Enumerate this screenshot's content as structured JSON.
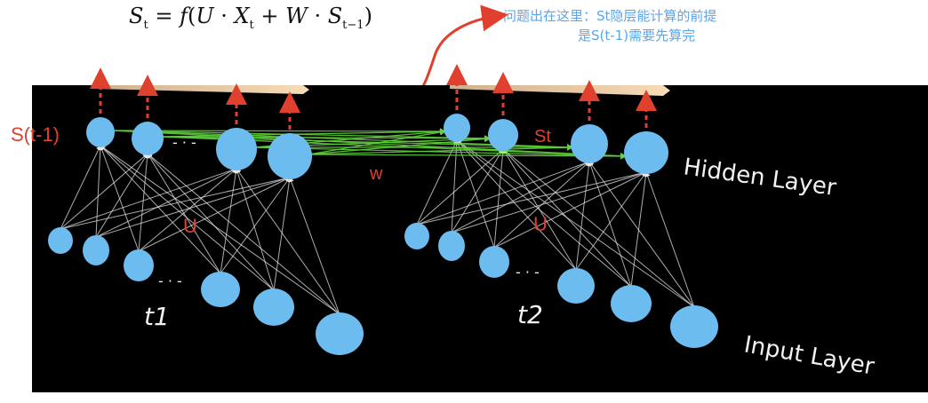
{
  "formula": {
    "lhs_var": "S",
    "lhs_sub": "t",
    "func": "f",
    "u": "U",
    "x": "X",
    "x_sub": "t",
    "w": "W",
    "s": "S",
    "s_sub": "t−1"
  },
  "annotation": {
    "line1": "问题出在这里：St隐层能计算的前提",
    "line2": "是S(t-1)需要先算完"
  },
  "labels": {
    "s_prev": "S(t-1)",
    "st": "St",
    "w": "w",
    "u1": "U",
    "u2": "U",
    "t1": "t1",
    "t2": "t2",
    "hidden_layer": "Hidden Layer",
    "input_layer": "Input Layer",
    "dots": "- · -"
  },
  "colors": {
    "node": "#6cbcf0",
    "panel_bg": "#000000",
    "connection": "#e6e6e6",
    "w_connection": "#5fd23c",
    "arrow_red": "#e0402e",
    "annotation": "#5aa6ee",
    "band": "#f3cfa4"
  }
}
